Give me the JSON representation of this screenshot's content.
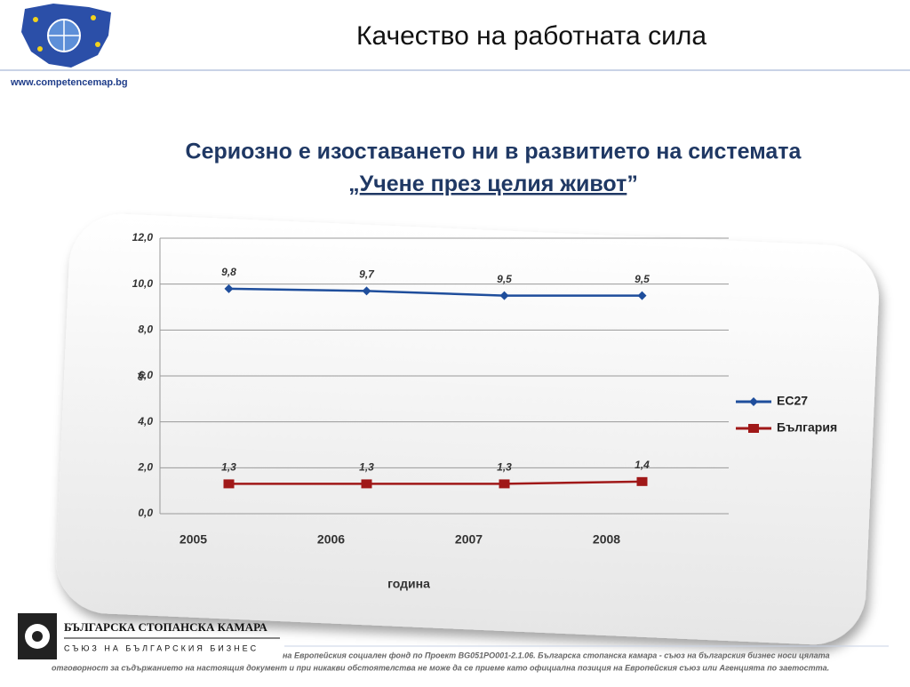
{
  "header": {
    "title": "Качество на работната сила",
    "url": "www.competencemap.bg"
  },
  "subtitle": {
    "line1": "Сериозно е изоставането ни в развитието на системата",
    "open_quote": "„",
    "quoted": "Учене през целия живот",
    "close_quote": "”"
  },
  "chart_data": {
    "type": "line",
    "xlabel": "година",
    "ylabel": "%",
    "categories": [
      "2005",
      "2006",
      "2007",
      "2008"
    ],
    "ylim": [
      0,
      12
    ],
    "yticks": [
      {
        "value": 0,
        "label": "0,0"
      },
      {
        "value": 2,
        "label": "2,0"
      },
      {
        "value": 4,
        "label": "4,0"
      },
      {
        "value": 6,
        "label": "6,0"
      },
      {
        "value": 8,
        "label": "8,0"
      },
      {
        "value": 10,
        "label": "10,0"
      },
      {
        "value": 12,
        "label": "12,0"
      }
    ],
    "grid": true,
    "legend": "right",
    "series": [
      {
        "name": "ЕС27",
        "color": "#1f4e9c",
        "marker": "diamond",
        "values": [
          9.8,
          9.7,
          9.5,
          9.5
        ],
        "value_labels": [
          "9,8",
          "9,7",
          "9,5",
          "9,5"
        ]
      },
      {
        "name": "България",
        "color": "#a01818",
        "marker": "square",
        "values": [
          1.3,
          1.3,
          1.3,
          1.4
        ],
        "value_labels": [
          "1,3",
          "1,3",
          "1,3",
          "1,4"
        ]
      }
    ]
  },
  "footer": {
    "org_name": "БЪЛГАРСКА СТОПАНСКА КАМАРА",
    "org_tagline": "СЪЮЗ НА БЪЛГАРСКИЯ БИЗНЕС",
    "disclaimer1": "на Европейския социален фонд по Проект BG051PO001-2.1.06. Българска стопанска камара - съюз на българския бизнес носи цялата",
    "disclaimer2": "отговорност за съдържанието на настоящия документ и при никакви обстоятелства не може да се приеме като официална позиция на Европейския съюз или Агенцията по заетостта."
  }
}
